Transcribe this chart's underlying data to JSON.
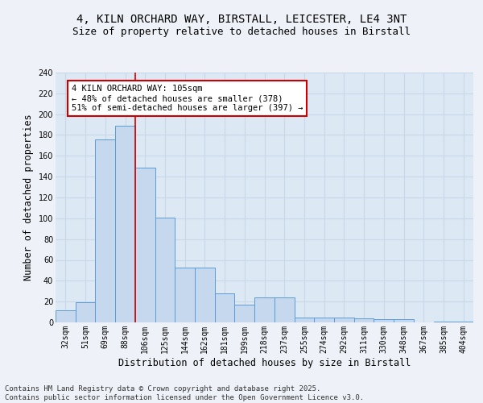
{
  "title_line1": "4, KILN ORCHARD WAY, BIRSTALL, LEICESTER, LE4 3NT",
  "title_line2": "Size of property relative to detached houses in Birstall",
  "categories": [
    "32sqm",
    "51sqm",
    "69sqm",
    "88sqm",
    "106sqm",
    "125sqm",
    "144sqm",
    "162sqm",
    "181sqm",
    "199sqm",
    "218sqm",
    "237sqm",
    "255sqm",
    "274sqm",
    "292sqm",
    "311sqm",
    "330sqm",
    "348sqm",
    "367sqm",
    "385sqm",
    "404sqm"
  ],
  "values": [
    12,
    19,
    176,
    189,
    149,
    101,
    53,
    53,
    28,
    17,
    24,
    24,
    5,
    5,
    5,
    4,
    3,
    3,
    0,
    1,
    1
  ],
  "bar_color": "#c5d8ed",
  "bar_edge_color": "#5b9bd5",
  "vline_color": "#cc0000",
  "vline_index": 3.5,
  "annotation_text": "4 KILN ORCHARD WAY: 105sqm\n← 48% of detached houses are smaller (378)\n51% of semi-detached houses are larger (397) →",
  "annotation_box_color": "#ffffff",
  "annotation_box_edge_color": "#cc0000",
  "xlabel": "Distribution of detached houses by size in Birstall",
  "ylabel": "Number of detached properties",
  "ylim": [
    0,
    240
  ],
  "yticks": [
    0,
    20,
    40,
    60,
    80,
    100,
    120,
    140,
    160,
    180,
    200,
    220,
    240
  ],
  "grid_color": "#c8d8e8",
  "fig_bg_color": "#eef2f8",
  "plot_bg_color": "#dce8f4",
  "footer_text": "Contains HM Land Registry data © Crown copyright and database right 2025.\nContains public sector information licensed under the Open Government Licence v3.0.",
  "title_fontsize": 10,
  "subtitle_fontsize": 9,
  "axis_label_fontsize": 8.5,
  "tick_fontsize": 7,
  "annotation_fontsize": 7.5,
  "footer_fontsize": 6.5
}
